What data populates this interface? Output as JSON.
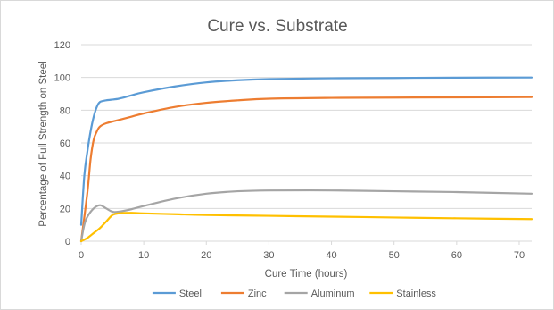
{
  "chart_data": {
    "type": "line",
    "title": "Cure vs. Substrate",
    "xlabel": "Cure Time (hours)",
    "ylabel": "Percentage of Full Strength on Steel",
    "xlim": [
      0,
      72
    ],
    "ylim": [
      0,
      120
    ],
    "x_ticks": [
      0,
      10,
      20,
      30,
      40,
      50,
      60,
      70
    ],
    "y_ticks": [
      0,
      20,
      40,
      60,
      80,
      100,
      120
    ],
    "grid": true,
    "legend_position": "bottom",
    "series": [
      {
        "name": "Steel",
        "color": "#5b9bd5",
        "points": [
          [
            0,
            10
          ],
          [
            0.5,
            40
          ],
          [
            1,
            55
          ],
          [
            1.5,
            67
          ],
          [
            2,
            76
          ],
          [
            2.5,
            82
          ],
          [
            3,
            85
          ],
          [
            4,
            86
          ],
          [
            6,
            87
          ],
          [
            8,
            89
          ],
          [
            10,
            91
          ],
          [
            15,
            94.5
          ],
          [
            20,
            97
          ],
          [
            25,
            98.3
          ],
          [
            30,
            99
          ],
          [
            40,
            99.5
          ],
          [
            50,
            99.7
          ],
          [
            60,
            99.9
          ],
          [
            72,
            100
          ]
        ]
      },
      {
        "name": "Zinc",
        "color": "#ed7d31",
        "points": [
          [
            0,
            0
          ],
          [
            1,
            30
          ],
          [
            1.5,
            50
          ],
          [
            2,
            62
          ],
          [
            2.5,
            67
          ],
          [
            3,
            70
          ],
          [
            4,
            72
          ],
          [
            6,
            74
          ],
          [
            8,
            76
          ],
          [
            10,
            78
          ],
          [
            15,
            82
          ],
          [
            20,
            84.5
          ],
          [
            25,
            86
          ],
          [
            30,
            87
          ],
          [
            40,
            87.5
          ],
          [
            50,
            87.7
          ],
          [
            60,
            87.8
          ],
          [
            72,
            88
          ]
        ]
      },
      {
        "name": "Aluminum",
        "color": "#a5a5a5",
        "points": [
          [
            0,
            0
          ],
          [
            0.5,
            10
          ],
          [
            1,
            15
          ],
          [
            2,
            20
          ],
          [
            3,
            22
          ],
          [
            4,
            20
          ],
          [
            5,
            18
          ],
          [
            6,
            18
          ],
          [
            8,
            19.5
          ],
          [
            10,
            21.5
          ],
          [
            15,
            26
          ],
          [
            20,
            29
          ],
          [
            25,
            30.5
          ],
          [
            30,
            31
          ],
          [
            40,
            31
          ],
          [
            50,
            30.5
          ],
          [
            60,
            30
          ],
          [
            72,
            29
          ]
        ]
      },
      {
        "name": "Stainless",
        "color": "#ffc000",
        "points": [
          [
            0,
            0
          ],
          [
            1,
            2
          ],
          [
            2,
            5
          ],
          [
            3,
            8
          ],
          [
            4,
            12
          ],
          [
            5,
            16
          ],
          [
            6,
            17
          ],
          [
            8,
            17.3
          ],
          [
            10,
            17
          ],
          [
            15,
            16.5
          ],
          [
            20,
            16
          ],
          [
            30,
            15.5
          ],
          [
            40,
            15
          ],
          [
            50,
            14.5
          ],
          [
            60,
            14
          ],
          [
            72,
            13.5
          ]
        ]
      }
    ]
  }
}
